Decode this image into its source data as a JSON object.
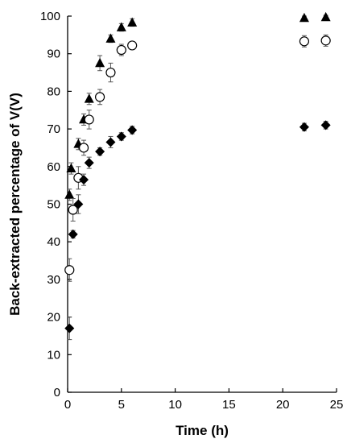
{
  "chart_data": {
    "type": "scatter",
    "title": "",
    "xlabel": "Time (h)",
    "ylabel": "Back-extracted percentage of V(V)",
    "xlim": [
      0,
      25
    ],
    "ylim": [
      0,
      100
    ],
    "x_ticks": [
      "0",
      "5",
      "10",
      "15",
      "20",
      "25"
    ],
    "y_ticks": [
      "0",
      "10",
      "20",
      "30",
      "40",
      "50",
      "60",
      "70",
      "80",
      "90",
      "100"
    ],
    "grid": false,
    "legend": "none",
    "series": [
      {
        "marker": "triangle-filled",
        "color": "#000000",
        "points": [
          {
            "x": 0.17,
            "y": 52.5,
            "err": 1.5
          },
          {
            "x": 0.33,
            "y": 59.5,
            "err": 1.5
          },
          {
            "x": 1.0,
            "y": 66.0,
            "err": 1.5
          },
          {
            "x": 1.5,
            "y": 72.5,
            "err": 1.5
          },
          {
            "x": 2.0,
            "y": 78.0,
            "err": 1.5
          },
          {
            "x": 3.0,
            "y": 87.5,
            "err": 2.0
          },
          {
            "x": 4.0,
            "y": 94.0,
            "err": 1.0
          },
          {
            "x": 5.0,
            "y": 97.0,
            "err": 1.0
          },
          {
            "x": 6.0,
            "y": 98.3,
            "err": 1.0
          },
          {
            "x": 22.0,
            "y": 99.5,
            "err": 0.5
          },
          {
            "x": 24.0,
            "y": 99.7,
            "err": 0.5
          }
        ]
      },
      {
        "marker": "circle-open",
        "color": "#000000",
        "points": [
          {
            "x": 0.17,
            "y": 32.5,
            "err": 3.0
          },
          {
            "x": 0.5,
            "y": 48.5,
            "err": 3.0
          },
          {
            "x": 1.0,
            "y": 57.0,
            "err": 3.0
          },
          {
            "x": 1.5,
            "y": 65.0,
            "err": 2.0
          },
          {
            "x": 2.0,
            "y": 72.5,
            "err": 2.5
          },
          {
            "x": 3.0,
            "y": 78.5,
            "err": 2.0
          },
          {
            "x": 4.0,
            "y": 85.0,
            "err": 2.5
          },
          {
            "x": 5.0,
            "y": 91.0,
            "err": 1.5
          },
          {
            "x": 6.0,
            "y": 92.2,
            "err": 1.0
          },
          {
            "x": 22.0,
            "y": 93.3,
            "err": 1.5
          },
          {
            "x": 24.0,
            "y": 93.5,
            "err": 1.5
          }
        ]
      },
      {
        "marker": "diamond-filled",
        "color": "#000000",
        "points": [
          {
            "x": 0.17,
            "y": 17.0,
            "err": 3.0
          },
          {
            "x": 0.5,
            "y": 42.0,
            "err": 1.0
          },
          {
            "x": 1.0,
            "y": 50.0,
            "err": 2.5
          },
          {
            "x": 1.5,
            "y": 56.5,
            "err": 1.5
          },
          {
            "x": 2.0,
            "y": 61.0,
            "err": 1.5
          },
          {
            "x": 3.0,
            "y": 64.0,
            "err": 1.0
          },
          {
            "x": 4.0,
            "y": 66.5,
            "err": 1.5
          },
          {
            "x": 5.0,
            "y": 68.0,
            "err": 1.0
          },
          {
            "x": 6.0,
            "y": 69.7,
            "err": 1.0
          },
          {
            "x": 22.0,
            "y": 70.5,
            "err": 1.0
          },
          {
            "x": 24.0,
            "y": 71.0,
            "err": 1.0
          }
        ]
      }
    ]
  }
}
